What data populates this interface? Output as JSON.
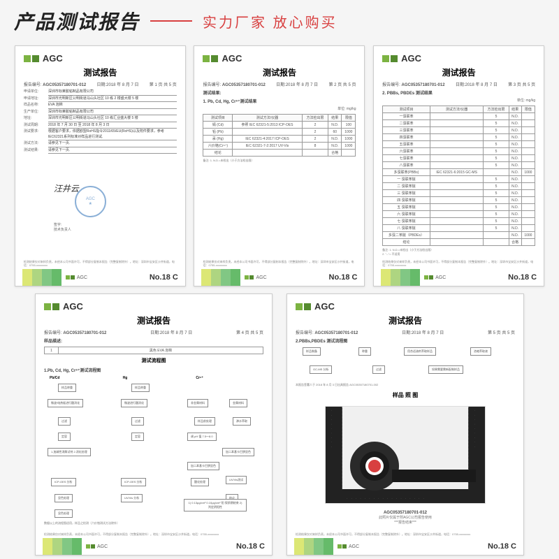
{
  "header": {
    "main_title": "产品测试报告",
    "sub_title": "实力厂家 放心购买"
  },
  "common": {
    "logo_text": "AGC",
    "report_title": "测试报告",
    "report_number_label": "报告编号:",
    "report_number": "AGC05357180701-012",
    "date_label": "日期:",
    "date": "2018 年 8 月 7 日",
    "page_label": "页数:",
    "footer_number": "No.18 C",
    "footer_text": "检测结果仅对来样负责，未经本公司书面许可，不得部分复制本报告（完整复制除外）。地址：深圳市宝安区沙井街道，电话：0755-xxxxxxxx"
  },
  "report1": {
    "page": "第 1 页 共 5 页",
    "fields": [
      {
        "label": "申请单位:",
        "value": "深圳市标莱胶粘制品有限公司"
      },
      {
        "label": "申请地址:",
        "value": "深圳市光明新区公明街道马山头社区 10 栋 2 楼盛大楼 5 楼"
      },
      {
        "label": "样品名称:",
        "value": "EVA 泡棉"
      },
      {
        "label": "生产单位:",
        "value": "深圳市标莱胶粘制品有限公司"
      },
      {
        "label": "地址:",
        "value": "深圳市光明新区公明街道马山头社区 10 栋汇业盛大楼 5 楼"
      },
      {
        "label": "测试周期:",
        "value": "2018 年 7 月 30 日 至 2018 年 8 月 3 日"
      },
      {
        "label": "测试要求:",
        "value": "根据客户要求，依据欧盟RoHS指令2011/65/EU(RoHS)以及附件要求，参考IEC62321系列标准对样品进行测试."
      },
      {
        "label": "测试方法:",
        "value": "请参见下一页."
      },
      {
        "label": "测试结果:",
        "value": "请参见下一页."
      }
    ],
    "sig_labels": [
      "签字:",
      "技术负责人"
    ]
  },
  "report2": {
    "page": "第 2 页 共 5 页",
    "section_title": "测试结果:",
    "sub_section": "1. Pb, Cd, Hg, Cr⁶⁺测试结果",
    "unit": "单位: mg/kg",
    "table": {
      "headers": [
        "测试项目",
        "测试方法/仪器",
        "方法检出限",
        "结果",
        "限值"
      ],
      "rows": [
        [
          "镉 (Cd)",
          "参照 IEC 62321-5:2013 ICP-OES",
          "2",
          "N.D.",
          "100"
        ],
        [
          "铅 (Pb)",
          "",
          "2",
          "60",
          "1000"
        ],
        [
          "汞 (Hg)",
          "IEC 62321-4:2017 ICP-OES",
          "2",
          "N.D.",
          "1000"
        ],
        [
          "六价铬(Cr⁶⁺)",
          "IEC 62321-7-2:2017 UV-Vis",
          "8",
          "N.D.",
          "1000"
        ],
        [
          "结论",
          "",
          "",
          "合格",
          ""
        ]
      ]
    },
    "note": "备注:  1. N.D.=未检出（小于方法检出限）"
  },
  "report3": {
    "page": "第 3 页 共 5 页",
    "sub_section": "2. PBBs, PBDEs 测试结果",
    "unit": "单位: mg/kg",
    "table": {
      "headers": [
        "测试项目",
        "测试方法/仪器",
        "方法检出限",
        "结果",
        "限值"
      ],
      "rows": [
        [
          "一溴联苯",
          "",
          "5",
          "N.D.",
          ""
        ],
        [
          "二溴联苯",
          "",
          "5",
          "N.D.",
          ""
        ],
        [
          "三溴联苯",
          "",
          "5",
          "N.D.",
          ""
        ],
        [
          "四溴联苯",
          "",
          "5",
          "N.D.",
          ""
        ],
        [
          "五溴联苯",
          "",
          "5",
          "N.D.",
          ""
        ],
        [
          "六溴联苯",
          "",
          "5",
          "N.D.",
          ""
        ],
        [
          "七溴联苯",
          "",
          "5",
          "N.D.",
          ""
        ],
        [
          "八溴联苯",
          "",
          "5",
          "N.D.",
          ""
        ],
        [
          "多溴联苯(PBBs)",
          "IEC 62321-6:2015 GC-MS",
          "",
          "N.D.",
          "1000"
        ],
        [
          "一 溴联苯醚",
          "",
          "5",
          "N.D.",
          ""
        ],
        [
          "二 溴联苯醚",
          "",
          "5",
          "N.D.",
          ""
        ],
        [
          "三 溴联苯醚",
          "",
          "5",
          "N.D.",
          ""
        ],
        [
          "四 溴联苯醚",
          "",
          "5",
          "N.D.",
          ""
        ],
        [
          "五 溴联苯醚",
          "",
          "5",
          "N.D.",
          ""
        ],
        [
          "六 溴联苯醚",
          "",
          "5",
          "N.D.",
          ""
        ],
        [
          "七 溴联苯醚",
          "",
          "5",
          "N.D.",
          ""
        ],
        [
          "八 溴联苯醚",
          "",
          "5",
          "N.D.",
          ""
        ],
        [
          "多溴二苯醚（PBDEs）",
          "",
          "",
          "N.D.",
          "1000"
        ],
        [
          "结论",
          "",
          "",
          "合格",
          ""
        ]
      ]
    },
    "note": "备注:  1. N.D.=未检出（小于方法检出限）\n       2. \"--\"= 不适用"
  },
  "report4": {
    "page": "第 4 页 共 5 页",
    "sample_section": "样品描述:",
    "sample_table": {
      "headers": [
        "1",
        "黑色 EVA 泡棉"
      ]
    },
    "flow_title": "测试流程图",
    "flow_sub": "1.Pb, Cd, Hg, Cr⁶⁺测试流程图",
    "col_headers": [
      "Pb/Cd",
      "Hg",
      "Cr⁶⁺"
    ],
    "boxes": [
      "样品称重",
      "样品称重",
      "微波/电热板进行酸消化",
      "微波进行酸消化",
      "非金属材料",
      "金属材料",
      "过滤",
      "过滤",
      "样品前处理",
      "沸水萃取",
      "定容",
      "定容",
      "调 pH 值 7.5～8.0",
      "加二苯基卡巴肼显色",
      "1.加碱性消解试剂 2.消化处理",
      "加二苯基卡巴肼显色",
      "UV/Vis测试",
      "ICP-OES 分析",
      "ICP-OES 分析",
      "酸化处理",
      "显色处理",
      "UV/Vis 分析",
      "结论",
      "显色处理",
      "1) 0.13μg/cm² 0.10μg/cm² 阳 保质期结束 2) 判定阴阳性"
    ],
    "bottom_note": "数据以上的流程图适用，样品之检测（六价铬测试方法除外）"
  },
  "report5": {
    "page": "第 5 页 共 5 页",
    "sub_section": "2.PBBs,PBDEs 测试流程图",
    "flow_boxes": [
      "样品制备",
      "称重",
      "用合适溶剂萃取样品",
      "浓缩萃取液",
      "GC-MS 分析",
      "过滤",
      "如果需要需新配制样品"
    ],
    "end_note": "本报告签署人于 2018 年 8 月 3 日出具报告 AGC05357180701-002",
    "pic_title": "样品 照 图",
    "caption": "AGC05357180701-012",
    "caption_sub": "此照片仅属于附AGC公司报告使用\n***报告结束***"
  },
  "colors": {
    "bg": "#f5f5f5",
    "accent": "#d84040",
    "green1": "#7cb342",
    "green2": "#558b2f",
    "bar1": "#dce775",
    "bar2": "#aed581",
    "bar3": "#81c784",
    "bar4": "#66bb6a",
    "stamp": "#5b8fc7"
  }
}
